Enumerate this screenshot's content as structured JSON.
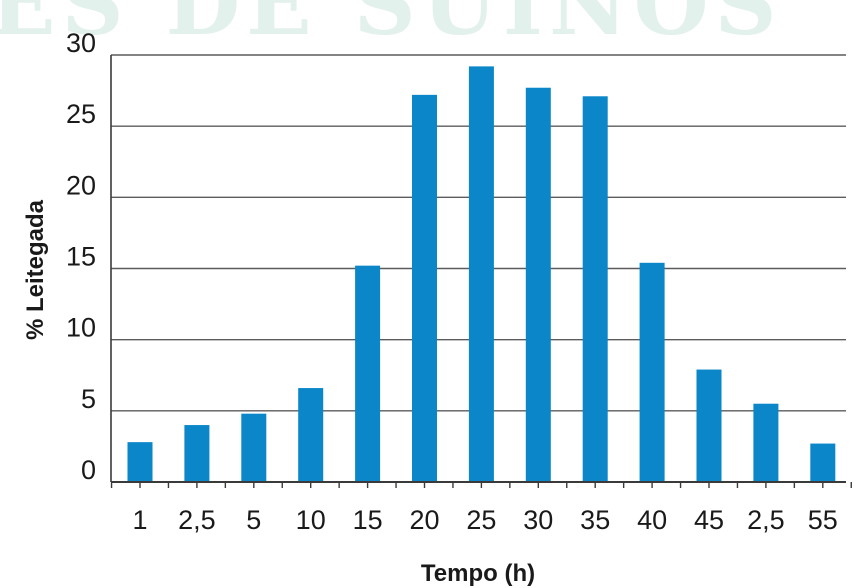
{
  "watermark_text": "ES DE SUÍNOS",
  "chart_data": {
    "type": "bar",
    "title": "",
    "xlabel": "Tempo (h)",
    "ylabel": "% Leitegada",
    "categories": [
      "1",
      "2,5",
      "5",
      "10",
      "15",
      "20",
      "25",
      "30",
      "35",
      "40",
      "45",
      "2,5",
      "55"
    ],
    "values": [
      2.8,
      4,
      4.8,
      6.6,
      15.2,
      27.2,
      29.2,
      27.7,
      27.1,
      15.4,
      7.9,
      5.5,
      2.7
    ],
    "ylim": [
      0,
      30
    ],
    "yticks": [
      0,
      5,
      10,
      15,
      20,
      25,
      30
    ],
    "grid": true,
    "bar_color": "#0a86c9",
    "legend": "none"
  }
}
